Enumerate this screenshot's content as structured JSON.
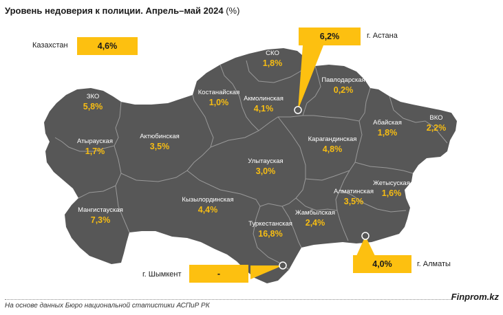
{
  "title": {
    "main": "Уровень недоверия к полиции. Апрель–май 2024",
    "unit": "(%)"
  },
  "country": {
    "label": "Казахстан",
    "value": "4,6%"
  },
  "cities": [
    {
      "id": "astana",
      "label": "г. Астана",
      "value": "6,2%"
    },
    {
      "id": "almaty",
      "label": "г. Алматы",
      "value": "4,0%"
    },
    {
      "id": "shymkent",
      "label": "г. Шымкент",
      "value": "-"
    }
  ],
  "regions": [
    {
      "id": "sko",
      "name": "СКО",
      "value": "1,8%"
    },
    {
      "id": "pavlodar",
      "name": "Павлодарская",
      "value": "0,2%"
    },
    {
      "id": "kostanay",
      "name": "Костанайская",
      "value": "1,0%"
    },
    {
      "id": "akmola",
      "name": "Акмолинская",
      "value": "4,1%"
    },
    {
      "id": "zko",
      "name": "ЗКО",
      "value": "5,8%"
    },
    {
      "id": "abay",
      "name": "Абайская",
      "value": "1,8%"
    },
    {
      "id": "vko",
      "name": "ВКО",
      "value": "2,2%"
    },
    {
      "id": "atyrau",
      "name": "Атырауская",
      "value": "1,7%"
    },
    {
      "id": "aktobe",
      "name": "Актюбинская",
      "value": "3,5%"
    },
    {
      "id": "karaganda",
      "name": "Карагандинская",
      "value": "4,8%"
    },
    {
      "id": "ulytau",
      "name": "Улытауская",
      "value": "3,0%"
    },
    {
      "id": "zhetysu",
      "name": "Жетысуская",
      "value": "1,6%"
    },
    {
      "id": "almaty_reg",
      "name": "Алматинская",
      "value": "3,5%"
    },
    {
      "id": "kyzylorda",
      "name": "Кызылординская",
      "value": "4,4%"
    },
    {
      "id": "mangystau",
      "name": "Мангистауская",
      "value": "7,3%"
    },
    {
      "id": "zhambyl",
      "name": "Жамбылская",
      "value": "2,4%"
    },
    {
      "id": "turkestan",
      "name": "Туркестанская",
      "value": "16,8%"
    }
  ],
  "source": "На основе данных Бюро национальной статистики АСПиР РК",
  "brand": "Finprom.kz",
  "colors": {
    "map_fill": "#575757",
    "accent": "#fdc010",
    "value_text": "#f7bd13",
    "border": "#9a9a9a"
  }
}
